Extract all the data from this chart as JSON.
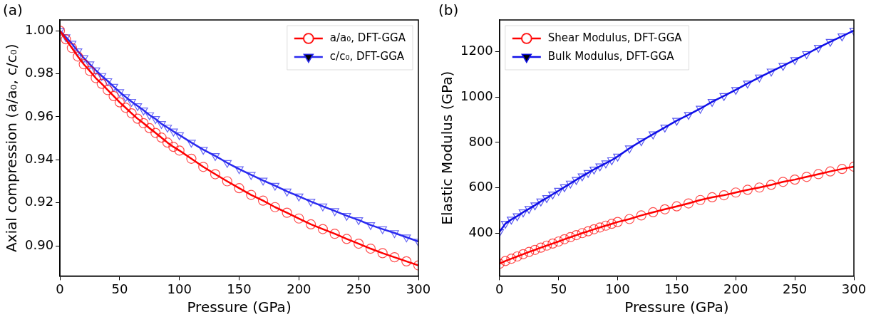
{
  "chart_data": [
    {
      "type": "line",
      "annotations": [
        "(a)"
      ],
      "xlabel": "Pressure (GPa)",
      "ylabel": "Axial compression (a/a₀, c/c₀)",
      "x": [
        0,
        5,
        10,
        15,
        20,
        25,
        30,
        35,
        40,
        45,
        50,
        55,
        60,
        65,
        70,
        75,
        80,
        85,
        90,
        95,
        100,
        110,
        120,
        130,
        140,
        150,
        160,
        170,
        180,
        190,
        200,
        210,
        220,
        230,
        240,
        250,
        260,
        270,
        280,
        290,
        300
      ],
      "series": [
        {
          "name": "a/a₀, DFT-GGA",
          "color": "#ff0000",
          "marker": "circle",
          "values": [
            1.0,
            0.996,
            0.992,
            0.988,
            0.9844,
            0.9813,
            0.978,
            0.9753,
            0.9724,
            0.9696,
            0.9667,
            0.9642,
            0.9616,
            0.9591,
            0.957,
            0.9547,
            0.9525,
            0.9503,
            0.948,
            0.946,
            0.9443,
            0.9405,
            0.9367,
            0.9333,
            0.93,
            0.9268,
            0.9237,
            0.921,
            0.918,
            0.9154,
            0.9127,
            0.91,
            0.9078,
            0.9056,
            0.9032,
            0.901,
            0.8987,
            0.8966,
            0.8947,
            0.8928,
            0.8909
          ]
        },
        {
          "name": "c/c₀, DFT-GGA",
          "color": "#2a2af0",
          "marker": "triangle",
          "values": [
            1.0,
            0.997,
            0.994,
            0.9905,
            0.9873,
            0.9844,
            0.9816,
            0.979,
            0.9766,
            0.974,
            0.9715,
            0.9692,
            0.967,
            0.965,
            0.963,
            0.9608,
            0.959,
            0.9567,
            0.955,
            0.9532,
            0.9515,
            0.948,
            0.9447,
            0.9418,
            0.9386,
            0.9357,
            0.933,
            0.9304,
            0.928,
            0.9253,
            0.923,
            0.9206,
            0.9184,
            0.9162,
            0.914,
            0.912,
            0.9097,
            0.9078,
            0.906,
            0.904,
            0.902
          ]
        }
      ],
      "xlim": [
        0,
        300
      ],
      "xticks": [
        0,
        50,
        100,
        150,
        200,
        250,
        300
      ],
      "ylim": [
        0.886,
        1.005
      ],
      "yticks": [
        {
          "value": 0.9,
          "label": "0.90"
        },
        {
          "value": 0.92,
          "label": "0.92"
        },
        {
          "value": 0.94,
          "label": "0.94"
        },
        {
          "value": 0.96,
          "label": "0.96"
        },
        {
          "value": 0.98,
          "label": "0.98"
        },
        {
          "value": 1.0,
          "label": "1.00"
        }
      ],
      "grid": false,
      "legend": "top right"
    },
    {
      "type": "line",
      "annotations": [
        "(b)"
      ],
      "xlabel": "Pressure (GPa)",
      "ylabel": "Elastic Modulus (GPa)",
      "x": [
        0,
        5,
        10,
        15,
        20,
        25,
        30,
        35,
        40,
        45,
        50,
        55,
        60,
        65,
        70,
        75,
        80,
        85,
        90,
        95,
        100,
        110,
        120,
        130,
        140,
        150,
        160,
        170,
        180,
        190,
        200,
        210,
        220,
        230,
        240,
        250,
        260,
        270,
        280,
        290,
        300
      ],
      "series": [
        {
          "name": "Shear Modulus, DFT-GGA",
          "color": "#ff0000",
          "marker": "circle",
          "values": [
            265,
            277,
            287,
            297,
            307,
            317,
            326,
            336,
            345,
            354,
            363,
            373,
            382,
            391,
            400,
            408,
            417,
            425,
            433,
            441,
            449,
            462,
            478,
            492,
            505,
            518,
            531,
            546,
            558,
            567,
            579,
            591,
            601,
            613,
            626,
            636,
            648,
            660,
            672,
            683,
            693
          ]
        },
        {
          "name": "Bulk Modulus, DFT-GGA",
          "color": "#1010e8",
          "marker": "triangle",
          "values": [
            405,
            442,
            460,
            475,
            492,
            507,
            523,
            540,
            555,
            571,
            587,
            603,
            619,
            635,
            651,
            666,
            681,
            695,
            708,
            722,
            738,
            774,
            806,
            836,
            866,
            896,
            922,
            949,
            979,
            1005,
            1032,
            1060,
            1087,
            1113,
            1138,
            1164,
            1190,
            1218,
            1244,
            1268,
            1293
          ]
        }
      ],
      "xlim": [
        0,
        300
      ],
      "xticks": [
        0,
        50,
        100,
        150,
        200,
        250,
        300
      ],
      "ylim": [
        211,
        1340
      ],
      "yticks": [
        400,
        600,
        800,
        1000,
        1200
      ],
      "grid": false,
      "legend": "top left"
    }
  ]
}
